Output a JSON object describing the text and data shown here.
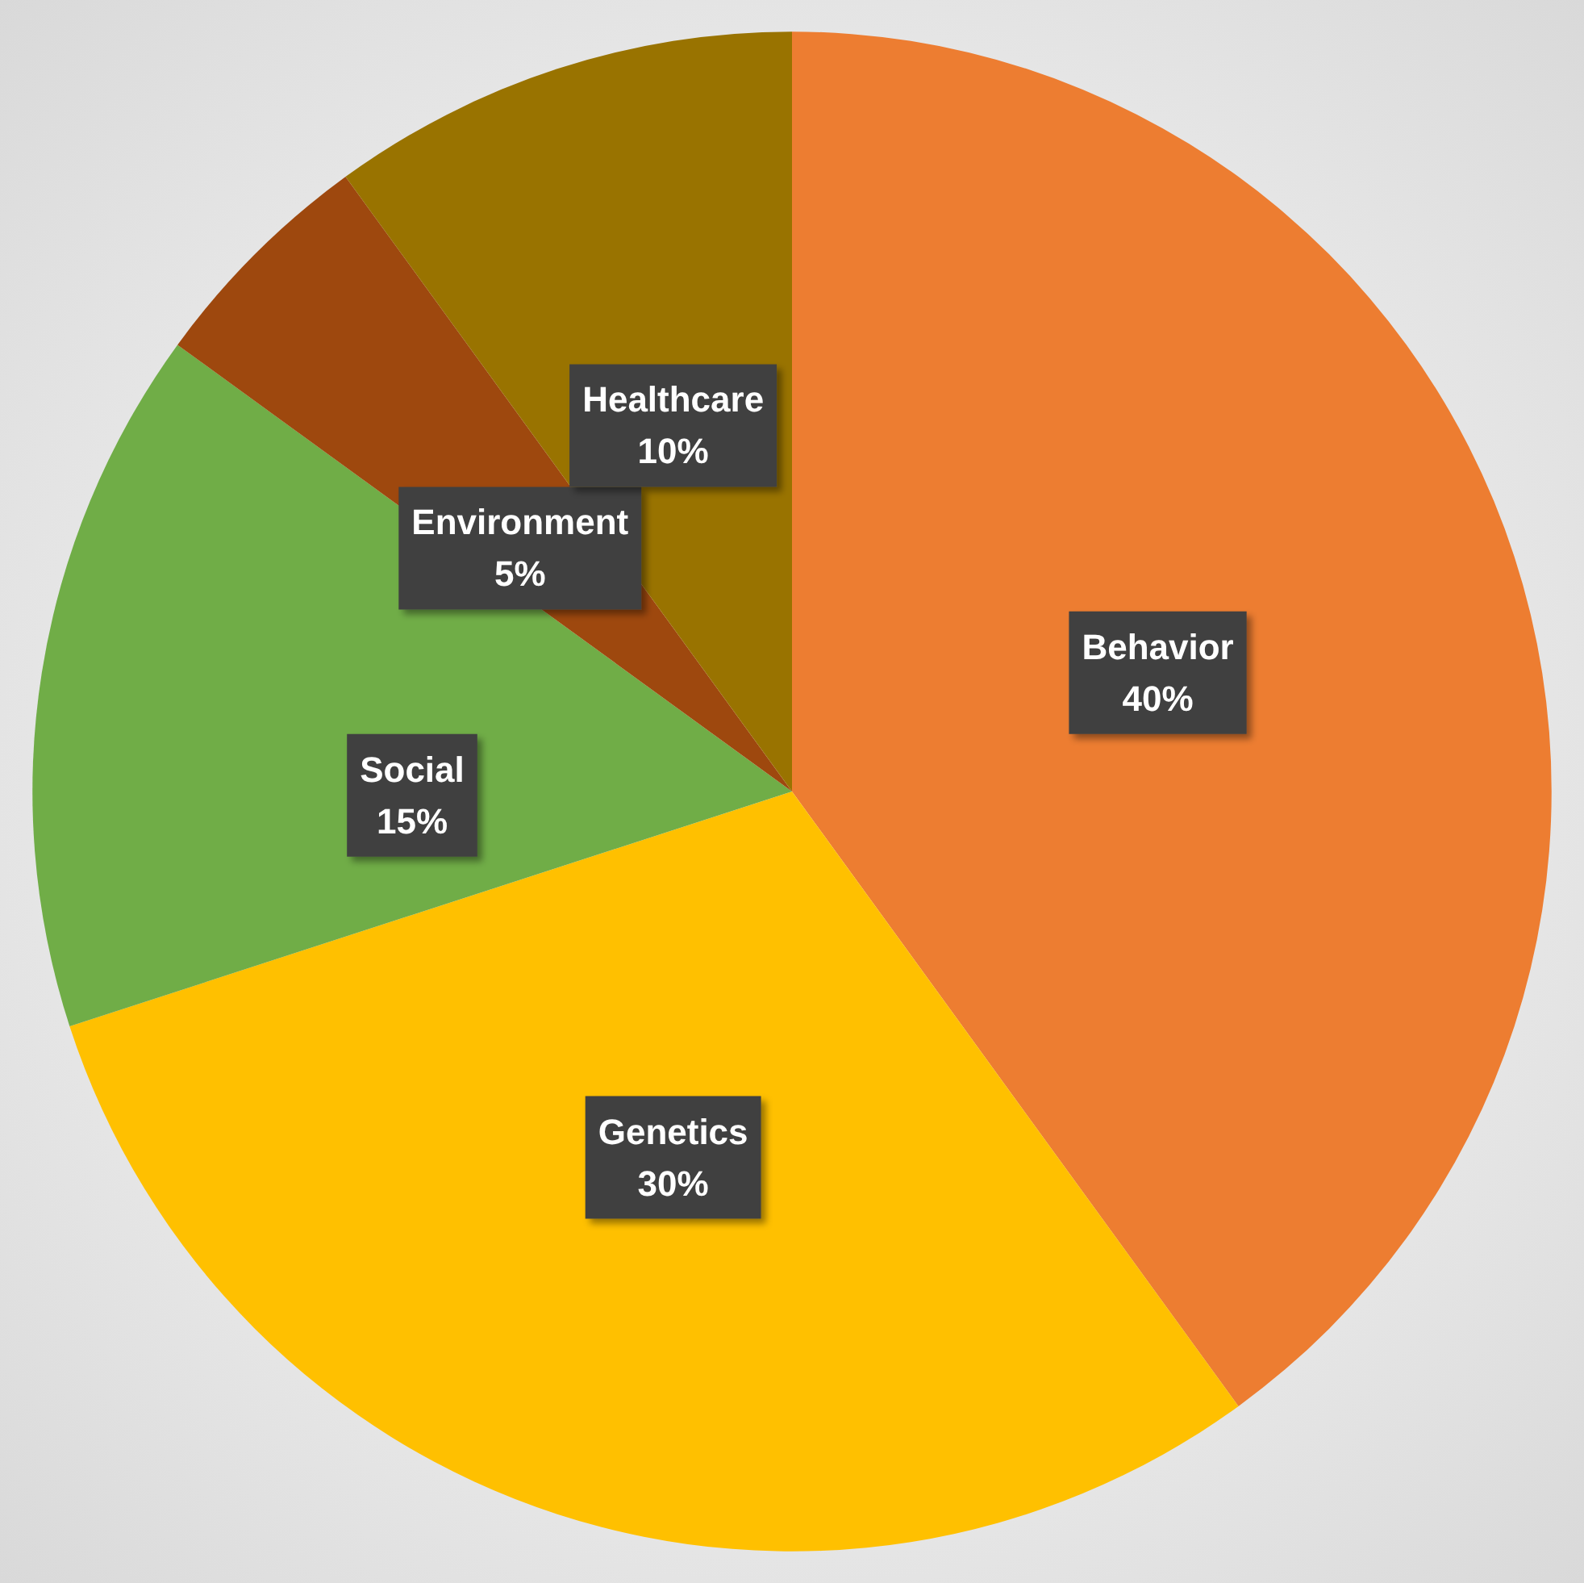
{
  "chart_data": {
    "type": "pie",
    "categories": [
      "Behavior",
      "Genetics",
      "Social",
      "Environment",
      "Healthcare"
    ],
    "values": [
      40,
      30,
      15,
      5,
      10
    ],
    "colors": [
      "#ed7d31",
      "#ffc000",
      "#70ad47",
      "#9e480e",
      "#997300"
    ],
    "value_labels": [
      "40%",
      "30%",
      "15%",
      "5%",
      "10%"
    ]
  }
}
